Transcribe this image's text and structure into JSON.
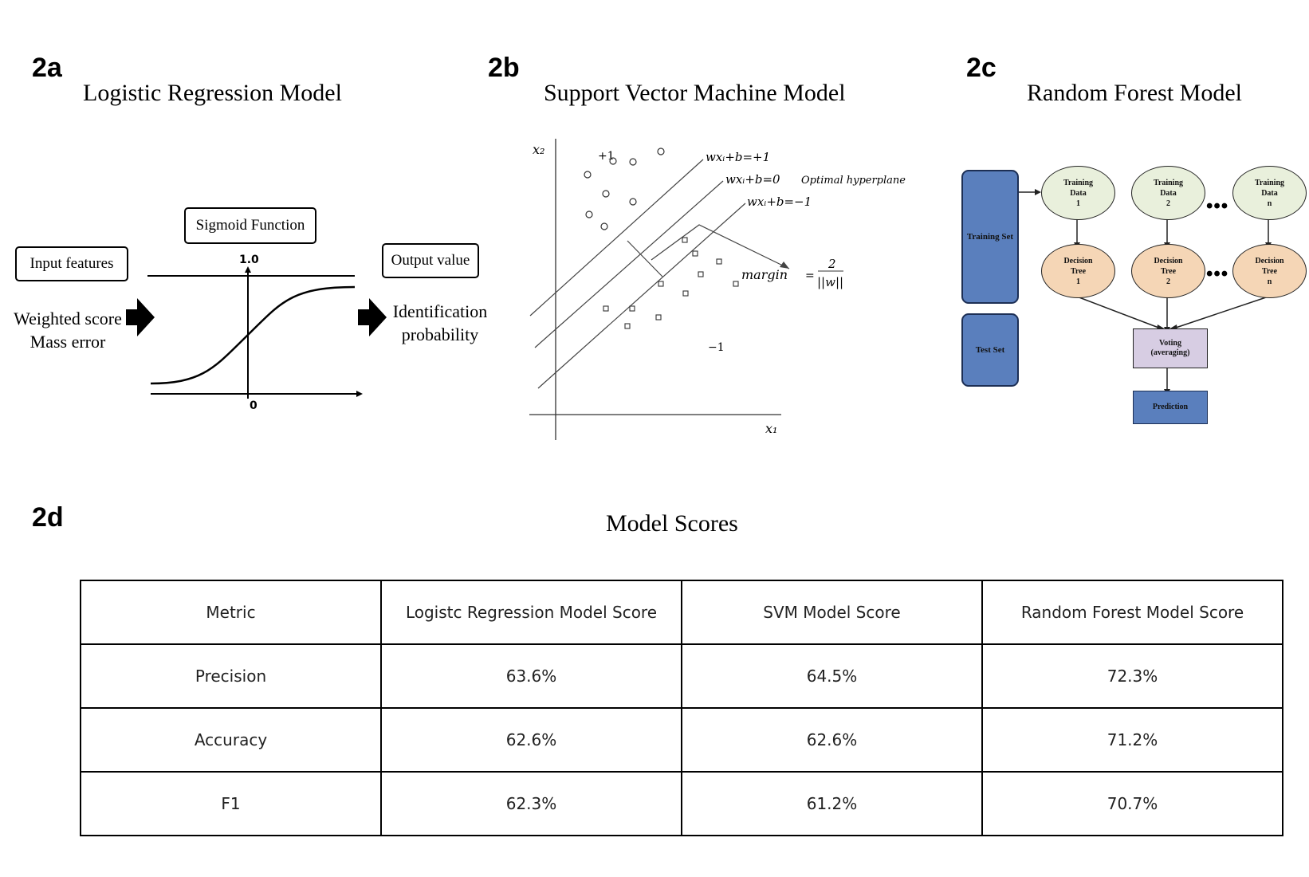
{
  "panels": {
    "a": {
      "label": "2a",
      "title": "Logistic Regression Model",
      "sigmoid_box": "Sigmoid Function",
      "input_box": "Input features",
      "input_lines": [
        "Weighted score",
        "Mass error"
      ],
      "output_box": "Output value",
      "output_lines": [
        "Identification",
        "probability"
      ],
      "y_top_tick": "1.0",
      "x_origin_tick": "0"
    },
    "b": {
      "label": "2b",
      "title": "Support Vector Machine Model",
      "x1_label": "x₁",
      "x2_label": "x₂",
      "plus_label": "+1",
      "minus_label": "−1",
      "line_plus": "wxᵢ+b=+1",
      "line_zero": "wxᵢ+b=0",
      "line_zero_note": "Optimal hyperplane",
      "line_minus": "wxᵢ+b=−1",
      "margin_label": "margin",
      "margin_eq": "=",
      "margin_num": "2",
      "margin_den": "||w||"
    },
    "c": {
      "label": "2c",
      "title": "Random Forest Model",
      "training_set": "Training Set",
      "test_set": "Test Set",
      "training_data": [
        {
          "l1": "Training",
          "l2": "Data",
          "l3": "1"
        },
        {
          "l1": "Training",
          "l2": "Data",
          "l3": "2"
        },
        {
          "l1": "Training",
          "l2": "Data",
          "l3": "n"
        }
      ],
      "trees": [
        {
          "l1": "Decision",
          "l2": "Tree",
          "l3": "1"
        },
        {
          "l1": "Decision",
          "l2": "Tree",
          "l3": "2"
        },
        {
          "l1": "Decision",
          "l2": "Tree",
          "l3": "n"
        }
      ],
      "ellipsis": "•••",
      "voting_l1": "Voting",
      "voting_l2": "(averaging)",
      "prediction": "Prediction",
      "colors": {
        "set_blue": "#5a7fbd",
        "data_green": "#e9f0dc",
        "tree_orange": "#f5d6b6",
        "voting_purple": "#d7cde3"
      }
    },
    "d": {
      "label": "2d",
      "title": "Model Scores",
      "headers": [
        "Metric",
        "Logistc Regression Model Score",
        "SVM Model Score",
        "Random Forest Model Score"
      ],
      "rows": [
        [
          "Precision",
          "63.6%",
          "64.5%",
          "72.3%"
        ],
        [
          "Accuracy",
          "62.6%",
          "62.6%",
          "71.2%"
        ],
        [
          "F1",
          "62.3%",
          "61.2%",
          "70.7%"
        ]
      ]
    }
  }
}
